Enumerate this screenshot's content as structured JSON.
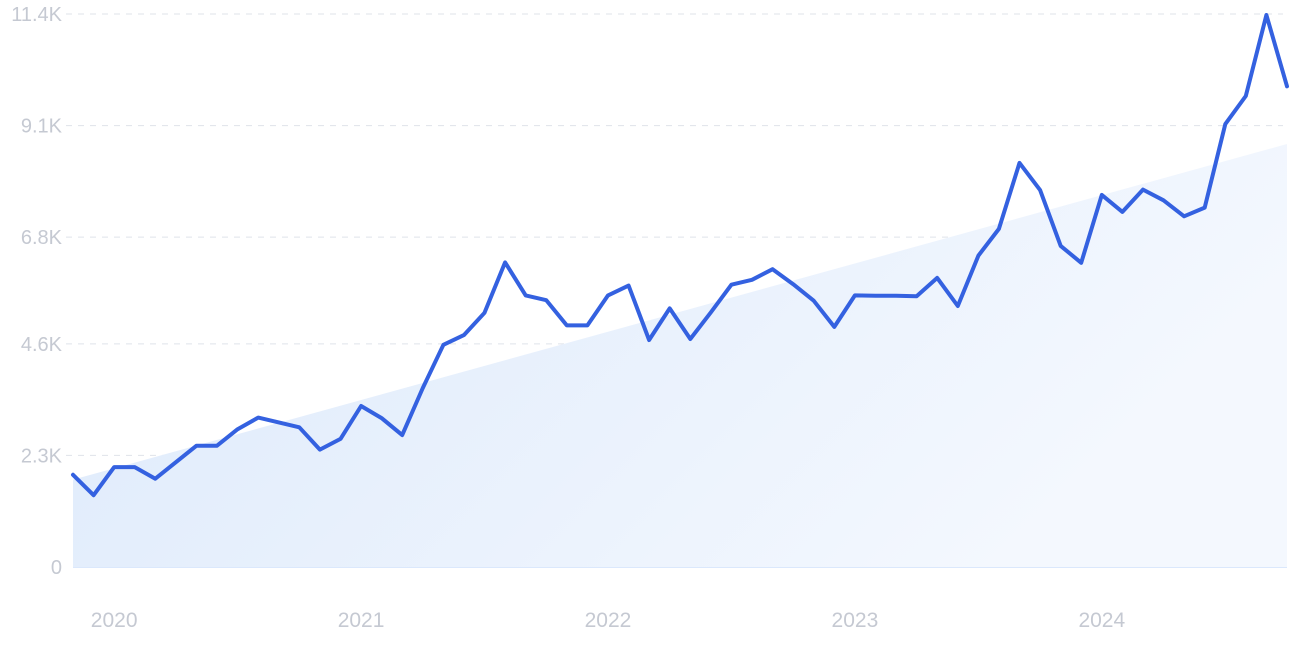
{
  "chart_data": {
    "type": "line",
    "title": "",
    "xlabel": "",
    "ylabel": "",
    "ylim": [
      0,
      11400
    ],
    "grid": true,
    "y_ticks": [
      {
        "value": 0,
        "label": "0"
      },
      {
        "value": 2300,
        "label": "2.3K"
      },
      {
        "value": 4600,
        "label": "4.6K"
      },
      {
        "value": 6800,
        "label": "6.8K"
      },
      {
        "value": 9100,
        "label": "9.1K"
      },
      {
        "value": 11400,
        "label": "11.4K"
      }
    ],
    "x_ticks": [
      {
        "value": "2020-01",
        "label": "2020"
      },
      {
        "value": "2021-01",
        "label": "2021"
      },
      {
        "value": "2022-01",
        "label": "2022"
      },
      {
        "value": "2023-01",
        "label": "2023"
      },
      {
        "value": "2024-01",
        "label": "2024"
      }
    ],
    "series": [
      {
        "color": "#3461e0",
        "x": [
          "2019-11",
          "2019-12",
          "2020-01",
          "2020-02",
          "2020-03",
          "2020-04",
          "2020-05",
          "2020-06",
          "2020-07",
          "2020-08",
          "2020-09",
          "2020-10",
          "2020-11",
          "2020-12",
          "2021-01",
          "2021-02",
          "2021-03",
          "2021-04",
          "2021-05",
          "2021-06",
          "2021-07",
          "2021-08",
          "2021-09",
          "2021-10",
          "2021-11",
          "2021-12",
          "2022-01",
          "2022-02",
          "2022-03",
          "2022-04",
          "2022-05",
          "2022-06",
          "2022-07",
          "2022-08",
          "2022-09",
          "2022-10",
          "2022-11",
          "2022-12",
          "2023-01",
          "2023-02",
          "2023-03",
          "2023-04",
          "2023-05",
          "2023-06",
          "2023-07",
          "2023-08",
          "2023-09",
          "2023-10",
          "2023-11",
          "2023-12",
          "2024-01",
          "2024-02",
          "2024-03",
          "2024-04",
          "2024-05",
          "2024-06",
          "2024-07",
          "2024-08",
          "2024-09",
          "2024-10"
        ],
        "values": [
          1900,
          1480,
          2060,
          2060,
          1820,
          2160,
          2500,
          2500,
          2840,
          3080,
          2980,
          2880,
          2420,
          2640,
          3320,
          3070,
          2720,
          3690,
          4580,
          4780,
          5240,
          6280,
          5600,
          5500,
          4980,
          4980,
          5600,
          5800,
          4680,
          5330,
          4700,
          5250,
          5820,
          5920,
          6140,
          5830,
          5490,
          4950,
          5600,
          5590,
          5590,
          5580,
          5960,
          5380,
          6420,
          6970,
          8330,
          7770,
          6620,
          6270,
          7670,
          7320,
          7780,
          7560,
          7230,
          7410,
          9130,
          9710,
          11380,
          9910
        ]
      }
    ],
    "trend_area": {
      "start": 1800,
      "end": 8720,
      "color": "#dbe8fb"
    }
  }
}
